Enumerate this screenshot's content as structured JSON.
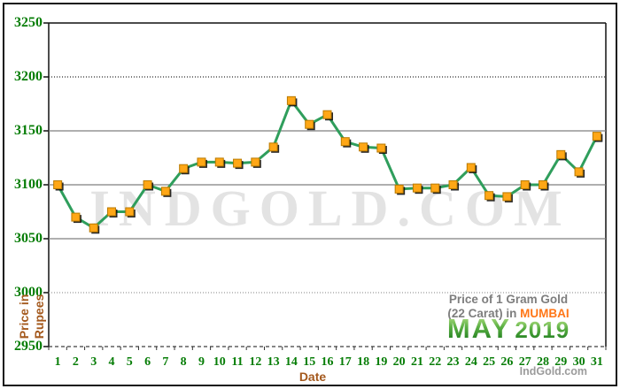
{
  "watermark": "INDGOLD.COM",
  "credit": "IndGold.com",
  "axes": {
    "y_title_line1": "Price in",
    "y_title_line2": "Rupees",
    "x_title": "Date",
    "y_tick_labels": [
      "3250",
      "3200",
      "3150",
      "3100",
      "3050",
      "3000",
      "2950"
    ]
  },
  "title_block": {
    "line1": "Price of 1 Gram Gold",
    "line2_prefix": "(22 Carat) in ",
    "city": "MUMBAI",
    "month": "MAY",
    "year": "2019"
  },
  "colors": {
    "line_green": "#2f9e5c",
    "marker_orange": "#ffa716",
    "marker_border": "#b97a00",
    "marker_shadow": "#111111",
    "tick_label_green": "#067d06",
    "axis_title_brown": "#a4591d",
    "title_gray": "#7e7e7e",
    "city_orange": "#ff7617",
    "gridline_gray": "#7f7f7f",
    "watermark_gray": "#e3e3e3"
  },
  "chart_data": {
    "type": "line",
    "title": "Price of 1 Gram Gold (22 Carat) in MUMBAI - MAY 2019",
    "xlabel": "Date",
    "ylabel": "Price in Rupees",
    "x": [
      1,
      2,
      3,
      4,
      5,
      6,
      7,
      8,
      9,
      10,
      11,
      12,
      13,
      14,
      15,
      16,
      17,
      18,
      19,
      20,
      21,
      22,
      23,
      24,
      25,
      26,
      27,
      28,
      29,
      30,
      31
    ],
    "series": [
      {
        "name": "Gold price, 1 gram 22 carat, Mumbai (Rupees)",
        "values": [
          3100,
          3070,
          3060,
          3075,
          3075,
          3100,
          3094,
          3115,
          3121,
          3121,
          3120,
          3121,
          3135,
          3178,
          3156,
          3165,
          3140,
          3135,
          3134,
          3096,
          3097,
          3097,
          3100,
          3116,
          3090,
          3089,
          3100,
          3100,
          3128,
          3112,
          3145
        ]
      }
    ],
    "ylim": [
      2950,
      3250
    ],
    "yticks": [
      3250,
      3200,
      3150,
      3100,
      3050,
      3000,
      2950
    ],
    "grid": "horizontal",
    "legend": "none",
    "marker": "square"
  }
}
